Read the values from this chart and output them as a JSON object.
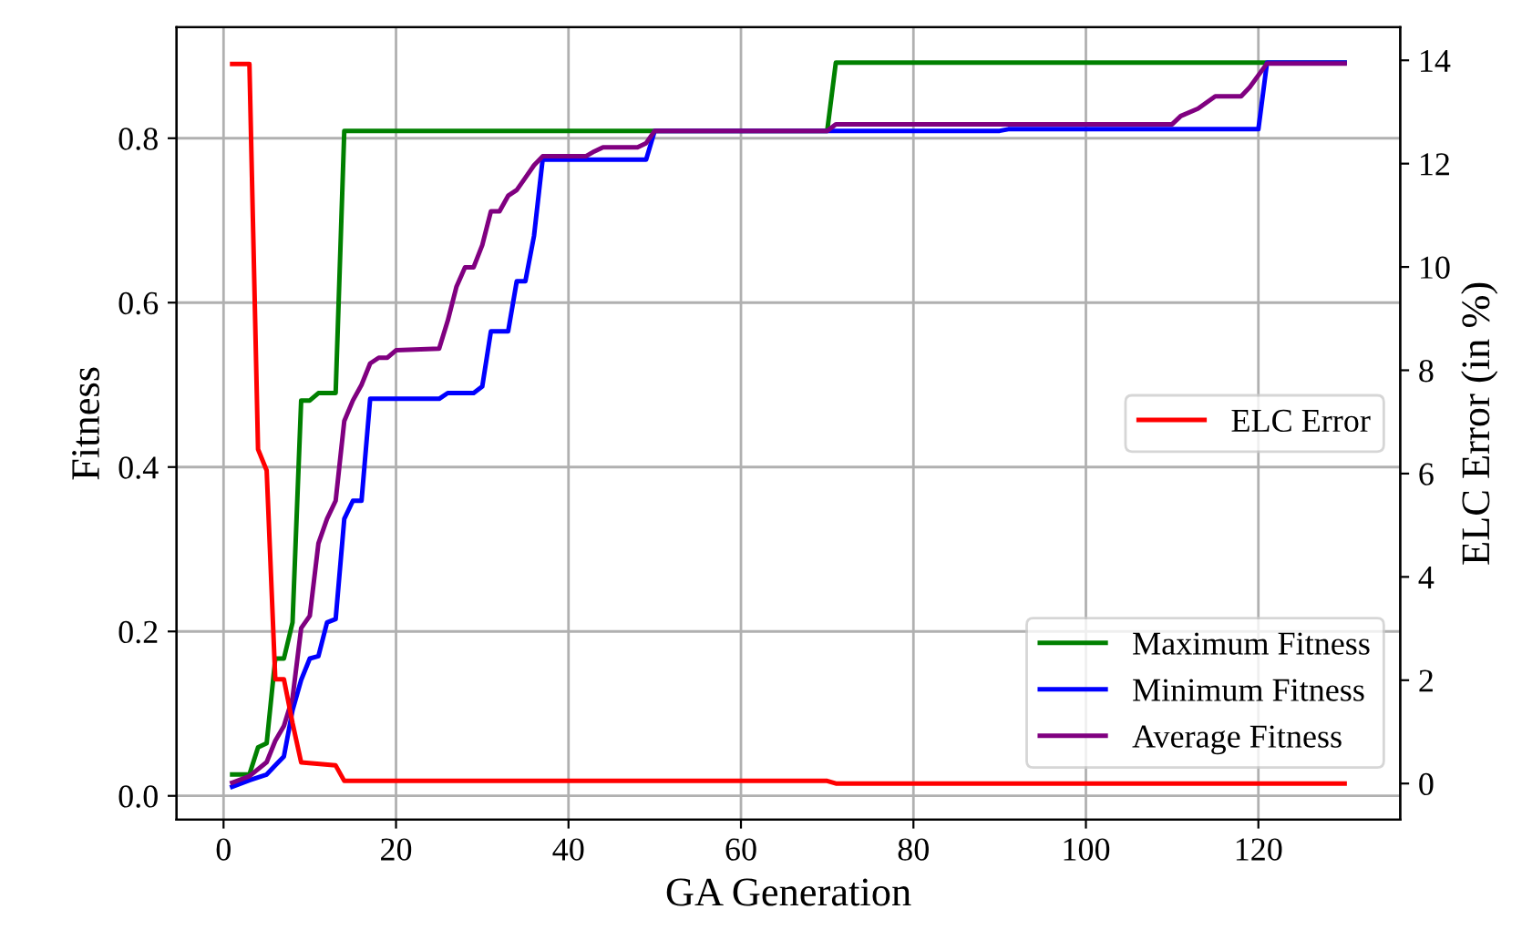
{
  "chart_data": {
    "type": "line",
    "xlabel": "GA Generation",
    "ylabel": "Fitness",
    "y2label": "ELC Error (in %)",
    "xlim": [
      -5.45,
      136.45
    ],
    "xticks": [
      0,
      20,
      40,
      60,
      80,
      100,
      120
    ],
    "ylim": [
      -0.029,
      0.935
    ],
    "yticks": [
      {
        "value": 0,
        "label": "0.0"
      },
      {
        "value": 0.2,
        "label": "0.2"
      },
      {
        "value": 0.4,
        "label": "0.4"
      },
      {
        "value": 0.6,
        "label": "0.6"
      },
      {
        "value": 0.8,
        "label": "0.8"
      }
    ],
    "y2lim": [
      -0.7,
      14.64
    ],
    "y2ticks": [
      0,
      2,
      4,
      6,
      8,
      10,
      12,
      14
    ],
    "grid": true,
    "legend": "lower right",
    "line_style": "solid",
    "marker": "none",
    "series": [
      {
        "name": "Maximum Fitness",
        "color": "#008000",
        "x": [
          1,
          3,
          4,
          5,
          6,
          7,
          8,
          9,
          10,
          11,
          13,
          14,
          70,
          71,
          130
        ],
        "values": [
          0.026,
          0.026,
          0.059,
          0.064,
          0.167,
          0.167,
          0.211,
          0.481,
          0.481,
          0.49,
          0.49,
          0.809,
          0.809,
          0.892,
          0.892
        ]
      },
      {
        "name": "Minimum Fitness",
        "color": "#0000ff",
        "x": [
          1,
          3,
          5,
          6,
          7,
          8,
          9,
          10,
          11,
          12,
          13,
          14,
          15,
          16,
          17,
          25,
          26,
          29,
          30,
          31,
          33,
          34,
          35,
          36,
          37,
          49,
          50,
          90,
          91,
          120,
          121,
          130
        ],
        "values": [
          0.011,
          0.019,
          0.026,
          0.037,
          0.048,
          0.104,
          0.141,
          0.167,
          0.17,
          0.211,
          0.215,
          0.337,
          0.359,
          0.359,
          0.483,
          0.483,
          0.49,
          0.49,
          0.498,
          0.565,
          0.565,
          0.626,
          0.626,
          0.681,
          0.774,
          0.774,
          0.809,
          0.809,
          0.811,
          0.811,
          0.892,
          0.892
        ]
      },
      {
        "name": "Average Fitness",
        "color": "#800080",
        "x": [
          1,
          3,
          5,
          6,
          7,
          8,
          9,
          10,
          11,
          12,
          13,
          14,
          15,
          16,
          17,
          18,
          19,
          20,
          25,
          26,
          27,
          28,
          29,
          30,
          31,
          32,
          33,
          34,
          35,
          36,
          37,
          42,
          43,
          44,
          48,
          49,
          50,
          70,
          71,
          110,
          111,
          113,
          115,
          118,
          119,
          121,
          130
        ],
        "values": [
          0.016,
          0.024,
          0.041,
          0.067,
          0.085,
          0.119,
          0.204,
          0.219,
          0.307,
          0.337,
          0.359,
          0.456,
          0.481,
          0.5,
          0.526,
          0.533,
          0.533,
          0.542,
          0.544,
          0.578,
          0.619,
          0.643,
          0.643,
          0.67,
          0.711,
          0.711,
          0.73,
          0.737,
          0.752,
          0.767,
          0.778,
          0.778,
          0.784,
          0.789,
          0.789,
          0.794,
          0.809,
          0.809,
          0.817,
          0.817,
          0.827,
          0.836,
          0.851,
          0.851,
          0.862,
          0.891,
          0.891
        ]
      },
      {
        "name": "ELC Error",
        "color": "#ff0000",
        "axis": "y2",
        "x": [
          1,
          3,
          4,
          5,
          6,
          7,
          8,
          9,
          13,
          14,
          70,
          71,
          130
        ],
        "values": [
          13.93,
          13.93,
          6.47,
          6.06,
          2.02,
          2.02,
          1.17,
          0.41,
          0.35,
          0.05,
          0.05,
          0.0,
          0.0
        ]
      }
    ]
  }
}
